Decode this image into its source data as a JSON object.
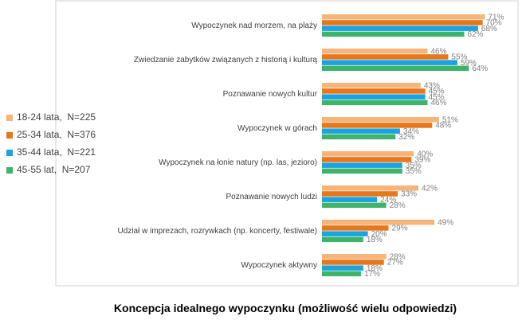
{
  "chart_data": {
    "type": "bar",
    "orientation": "horizontal",
    "title": "Koncepcja idealnego wypoczynku (możliwość wielu odpowiedzi)",
    "xlabel": "",
    "ylabel": "",
    "xlim": [
      0,
      80
    ],
    "value_suffix": "%",
    "legend_position": "left",
    "categories": [
      "Wypoczynek nad morzem, na plaży",
      "Zwiedzanie zabytków związanych z historią i kulturą",
      "Poznawanie nowych kultur",
      "Wypoczynek w górach",
      "Wypoczynek na łonie natury (np. las, jezioro)",
      "Poznawanie nowych ludzi",
      "Udział w imprezach, rozrywkach (np. koncerty, festiwale)",
      "Wypoczynek aktywny"
    ],
    "series": [
      {
        "name": "18-24 lata,  N=225",
        "color": "#F5B57A",
        "values": [
          71,
          46,
          43,
          51,
          40,
          42,
          49,
          28
        ]
      },
      {
        "name": "25-34 lata,  N=376",
        "color": "#E8761B",
        "values": [
          70,
          55,
          45,
          48,
          39,
          33,
          29,
          27
        ]
      },
      {
        "name": "35-44 lata,  N=221",
        "color": "#1AA3E0",
        "values": [
          68,
          59,
          45,
          34,
          35,
          24,
          20,
          18
        ]
      },
      {
        "name": "45-55 lat,  N=207",
        "color": "#3DB46A",
        "values": [
          62,
          64,
          46,
          32,
          35,
          28,
          18,
          17
        ]
      }
    ]
  }
}
